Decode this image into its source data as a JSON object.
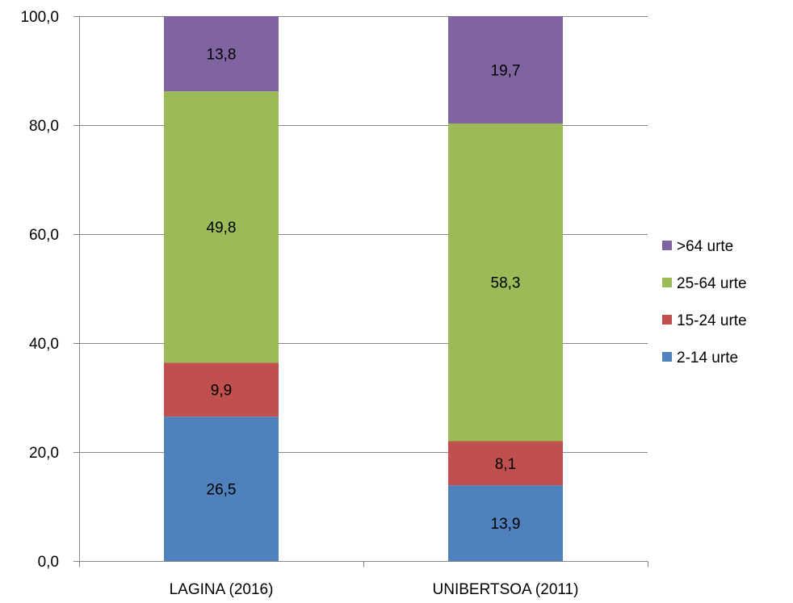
{
  "chart_data": {
    "type": "bar",
    "stacked": true,
    "categories": [
      "LAGINA (2016)",
      "UNIBERTSOA (2011)"
    ],
    "series": [
      {
        "name": "2-14 urte",
        "values": [
          26.5,
          13.9
        ],
        "value_labels": [
          "26,5",
          "13,9"
        ],
        "color": "#4F81BD"
      },
      {
        "name": "15-24 urte",
        "values": [
          9.9,
          8.1
        ],
        "value_labels": [
          "9,9",
          "8,1"
        ],
        "color": "#C0504D"
      },
      {
        "name": "25-64 urte",
        "values": [
          49.8,
          58.3
        ],
        "value_labels": [
          "49,8",
          "58,3"
        ],
        "color": "#9BBB59"
      },
      {
        "name": ">64 urte",
        "values": [
          13.8,
          19.7
        ],
        "value_labels": [
          "13,8",
          "19,7"
        ],
        "color": "#8064A2"
      }
    ],
    "legend_order": [
      ">64 urte",
      "25-64 urte",
      "15-24 urte",
      "2-14 urte"
    ],
    "legend_position": "right",
    "ylim": [
      0,
      100
    ],
    "yticks": [
      0,
      20,
      40,
      60,
      80,
      100
    ],
    "ytick_labels": [
      "0,0",
      "20,0",
      "40,0",
      "60,0",
      "80,0",
      "100,0"
    ],
    "grid": true,
    "title": "",
    "xlabel": "",
    "ylabel": ""
  },
  "colors": {
    "gridline": "#868686",
    "axis": "#868686",
    "text": "#000000"
  }
}
